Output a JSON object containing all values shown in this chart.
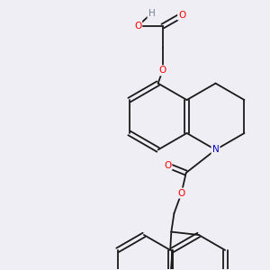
{
  "background_color": "#eeeef4",
  "atom_colors": {
    "O": "#ff0000",
    "N": "#0000cc",
    "H": "#708090",
    "C": "#1a1a1a"
  },
  "lw": 1.3,
  "fs": 7.5
}
